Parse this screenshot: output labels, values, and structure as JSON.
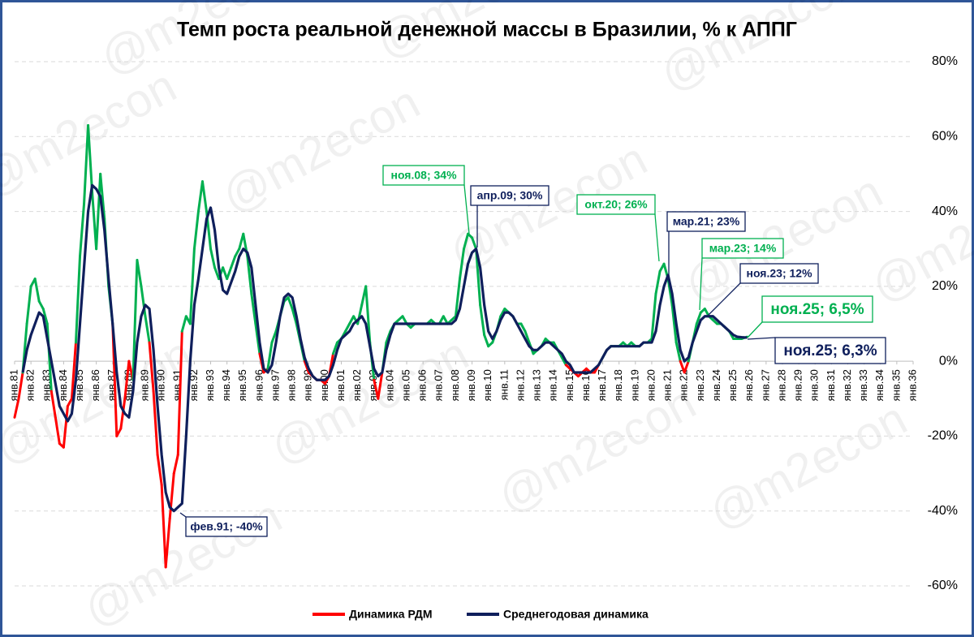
{
  "chart_data": {
    "type": "line",
    "title": "Темп роста реальной денежной массы в Бразилии, % к АППГ",
    "watermark": "@m2econ",
    "x": [
      1981,
      1981.25,
      1981.5,
      1981.75,
      1982,
      1982.25,
      1982.5,
      1982.75,
      1983,
      1983.25,
      1983.5,
      1983.75,
      1984,
      1984.25,
      1984.5,
      1984.75,
      1985,
      1985.25,
      1985.5,
      1985.75,
      1986,
      1986.25,
      1986.5,
      1986.75,
      1987,
      1987.25,
      1987.5,
      1987.75,
      1988,
      1988.25,
      1988.5,
      1988.75,
      1989,
      1989.25,
      1989.5,
      1989.75,
      1990,
      1990.25,
      1990.5,
      1990.75,
      1991,
      1991.25,
      1991.5,
      1991.75,
      1992,
      1992.25,
      1992.5,
      1992.75,
      1993,
      1993.25,
      1993.5,
      1993.75,
      1994,
      1994.25,
      1994.5,
      1994.75,
      1995,
      1995.25,
      1995.5,
      1995.75,
      1996,
      1996.25,
      1996.5,
      1996.75,
      1997,
      1997.25,
      1997.5,
      1997.75,
      1998,
      1998.25,
      1998.5,
      1998.75,
      1999,
      1999.25,
      1999.5,
      1999.75,
      2000,
      2000.25,
      2000.5,
      2000.75,
      2001,
      2001.25,
      2001.5,
      2001.75,
      2002,
      2002.25,
      2002.5,
      2002.75,
      2003,
      2003.25,
      2003.5,
      2003.75,
      2004,
      2004.25,
      2004.5,
      2004.75,
      2005,
      2005.25,
      2005.5,
      2005.75,
      2006,
      2006.25,
      2006.5,
      2006.75,
      2007,
      2007.25,
      2007.5,
      2007.75,
      2008,
      2008.25,
      2008.5,
      2008.75,
      2009,
      2009.25,
      2009.5,
      2009.75,
      2010,
      2010.25,
      2010.5,
      2010.75,
      2011,
      2011.25,
      2011.5,
      2011.75,
      2012,
      2012.25,
      2012.5,
      2012.75,
      2013,
      2013.25,
      2013.5,
      2013.75,
      2014,
      2014.25,
      2014.5,
      2014.75,
      2015,
      2015.25,
      2015.5,
      2015.75,
      2016,
      2016.25,
      2016.5,
      2016.75,
      2017,
      2017.25,
      2017.5,
      2017.75,
      2018,
      2018.25,
      2018.5,
      2018.75,
      2019,
      2019.25,
      2019.5,
      2019.75,
      2020,
      2020.25,
      2020.5,
      2020.75,
      2021,
      2021.25,
      2021.5,
      2021.75,
      2022,
      2022.25,
      2022.5,
      2022.75,
      2023,
      2023.25,
      2023.5,
      2023.75,
      2024,
      2024.25,
      2024.5,
      2024.75,
      2025,
      2025.25,
      2025.5,
      2025.833
    ],
    "series": [
      {
        "name": "Динамика РДМ",
        "color": "#ff0000",
        "positive_color": "#00b050",
        "values": [
          -15,
          -10,
          -3,
          10,
          20,
          22,
          16,
          14,
          10,
          -8,
          -15,
          -22,
          -23,
          -12,
          -10,
          5,
          28,
          42,
          63,
          45,
          30,
          50,
          38,
          20,
          10,
          -20,
          -18,
          -10,
          0,
          -5,
          27,
          20,
          12,
          5,
          -8,
          -25,
          -33,
          -55,
          -42,
          -30,
          -25,
          8,
          12,
          10,
          30,
          40,
          48,
          40,
          30,
          25,
          22,
          25,
          22,
          25,
          28,
          30,
          34,
          28,
          18,
          10,
          2,
          -3,
          -2,
          5,
          8,
          12,
          16,
          17,
          14,
          10,
          5,
          0,
          -3,
          -4,
          -5,
          -5,
          -6,
          -4,
          2,
          5,
          6,
          8,
          10,
          12,
          10,
          15,
          20,
          5,
          -5,
          -10,
          -3,
          5,
          8,
          10,
          11,
          12,
          10,
          9,
          10,
          10,
          10,
          10,
          11,
          10,
          10,
          12,
          10,
          11,
          12,
          22,
          30,
          34,
          33,
          30,
          15,
          7,
          4,
          5,
          8,
          12,
          14,
          13,
          12,
          10,
          10,
          8,
          5,
          2,
          3,
          4,
          6,
          5,
          5,
          3,
          1,
          -1,
          -2,
          -3,
          -4,
          -3,
          -2,
          -3,
          -3,
          -1,
          1,
          3,
          4,
          4,
          4,
          5,
          4,
          5,
          4,
          4,
          5,
          5,
          6,
          18,
          24,
          26,
          22,
          15,
          5,
          0,
          -3,
          0,
          5,
          10,
          13,
          14,
          12,
          11,
          10,
          10,
          9,
          8,
          6,
          6,
          6,
          6.5
        ]
      },
      {
        "name": "Среднегодовая динамика",
        "color": "#0f1f5c",
        "values": [
          null,
          null,
          -3,
          3,
          7,
          10,
          13,
          12,
          6,
          0,
          -6,
          -12,
          -14,
          -16,
          -14,
          -5,
          10,
          25,
          40,
          47,
          46,
          44,
          35,
          22,
          10,
          -3,
          -12,
          -14,
          -15,
          -8,
          5,
          12,
          15,
          14,
          3,
          -12,
          -25,
          -35,
          -39,
          -40,
          -39,
          -38,
          -20,
          0,
          15,
          22,
          30,
          38,
          41,
          35,
          25,
          19,
          18,
          21,
          24,
          28,
          30,
          29,
          25,
          15,
          5,
          -2,
          -3,
          -1,
          5,
          12,
          17,
          18,
          17,
          12,
          6,
          1,
          -2,
          -4,
          -5,
          -5,
          -5,
          -4,
          -1,
          3,
          6,
          7,
          8,
          10,
          11,
          12,
          10,
          4,
          -2,
          -4,
          -3,
          3,
          7,
          10,
          10,
          10,
          10,
          10,
          10,
          10,
          10,
          10,
          10,
          10,
          10,
          10,
          10,
          10,
          11,
          14,
          20,
          26,
          29,
          30,
          25,
          15,
          8,
          6,
          8,
          11,
          13,
          13,
          12,
          10,
          8,
          6,
          4,
          3,
          3,
          4,
          5,
          5,
          4,
          3,
          2,
          0,
          -1,
          -3,
          -3,
          -3,
          -3,
          -3,
          -2,
          -1,
          1,
          3,
          4,
          4,
          4,
          4,
          4,
          4,
          4,
          4,
          5,
          5,
          5,
          8,
          15,
          20,
          23,
          18,
          10,
          3,
          0,
          1,
          5,
          8,
          11,
          12,
          12,
          12,
          11,
          10,
          9,
          8,
          7,
          6.5,
          6.4,
          6.3
        ]
      }
    ],
    "xlim": [
      1981,
      2036
    ],
    "xticks": [
      {
        "value": 1981,
        "label": "янв.81"
      },
      {
        "value": 1982,
        "label": "янв.82"
      },
      {
        "value": 1983,
        "label": "янв.83"
      },
      {
        "value": 1984,
        "label": "янв.84"
      },
      {
        "value": 1985,
        "label": "янв.85"
      },
      {
        "value": 1986,
        "label": "янв.86"
      },
      {
        "value": 1987,
        "label": "янв.87"
      },
      {
        "value": 1988,
        "label": "янв.88"
      },
      {
        "value": 1989,
        "label": "янв.89"
      },
      {
        "value": 1990,
        "label": "янв.90"
      },
      {
        "value": 1991,
        "label": "янв.91"
      },
      {
        "value": 1992,
        "label": "янв.92"
      },
      {
        "value": 1993,
        "label": "янв.93"
      },
      {
        "value": 1994,
        "label": "янв.94"
      },
      {
        "value": 1995,
        "label": "янв.95"
      },
      {
        "value": 1996,
        "label": "янв.96"
      },
      {
        "value": 1997,
        "label": "янв.97"
      },
      {
        "value": 1998,
        "label": "янв.98"
      },
      {
        "value": 1999,
        "label": "янв.99"
      },
      {
        "value": 2000,
        "label": "янв.00"
      },
      {
        "value": 2001,
        "label": "янв.01"
      },
      {
        "value": 2002,
        "label": "янв.02"
      },
      {
        "value": 2003,
        "label": "янв.03"
      },
      {
        "value": 2004,
        "label": "янв.04"
      },
      {
        "value": 2005,
        "label": "янв.05"
      },
      {
        "value": 2006,
        "label": "янв.06"
      },
      {
        "value": 2007,
        "label": "янв.07"
      },
      {
        "value": 2008,
        "label": "янв.08"
      },
      {
        "value": 2009,
        "label": "янв.09"
      },
      {
        "value": 2010,
        "label": "янв.10"
      },
      {
        "value": 2011,
        "label": "янв.11"
      },
      {
        "value": 2012,
        "label": "янв.12"
      },
      {
        "value": 2013,
        "label": "янв.13"
      },
      {
        "value": 2014,
        "label": "янв.14"
      },
      {
        "value": 2015,
        "label": "янв.15"
      },
      {
        "value": 2016,
        "label": "янв.16"
      },
      {
        "value": 2017,
        "label": "янв.17"
      },
      {
        "value": 2018,
        "label": "янв.18"
      },
      {
        "value": 2019,
        "label": "янв.19"
      },
      {
        "value": 2020,
        "label": "янв.20"
      },
      {
        "value": 2021,
        "label": "янв.21"
      },
      {
        "value": 2022,
        "label": "янв.22"
      },
      {
        "value": 2023,
        "label": "янв.23"
      },
      {
        "value": 2024,
        "label": "янв.24"
      },
      {
        "value": 2025,
        "label": "янв.25"
      },
      {
        "value": 2026,
        "label": "янв.26"
      },
      {
        "value": 2027,
        "label": "янв.27"
      },
      {
        "value": 2028,
        "label": "янв.28"
      },
      {
        "value": 2029,
        "label": "янв.29"
      },
      {
        "value": 2030,
        "label": "янв.30"
      },
      {
        "value": 2031,
        "label": "янв.31"
      },
      {
        "value": 2032,
        "label": "янв.32"
      },
      {
        "value": 2033,
        "label": "янв.33"
      },
      {
        "value": 2034,
        "label": "янв.34"
      },
      {
        "value": 2035,
        "label": "янв.35"
      },
      {
        "value": 2036,
        "label": "янв.36"
      }
    ],
    "ylim": [
      -60,
      80
    ],
    "yticks": [
      {
        "value": -60,
        "label": "-60%"
      },
      {
        "value": -40,
        "label": "-40%"
      },
      {
        "value": -20,
        "label": "-20%"
      },
      {
        "value": 0,
        "label": "0%"
      },
      {
        "value": 20,
        "label": "20%"
      },
      {
        "value": 40,
        "label": "40%"
      },
      {
        "value": 60,
        "label": "60%"
      },
      {
        "value": 80,
        "label": "80%"
      }
    ],
    "grid": true,
    "legend": "bottom",
    "annotations": [
      {
        "text": "ноя.08; 34%",
        "color": "#00b050"
      },
      {
        "text": "апр.09; 30%",
        "color": "#0f1f5c"
      },
      {
        "text": "окт.20; 26%",
        "color": "#00b050"
      },
      {
        "text": "мар.21; 23%",
        "color": "#0f1f5c"
      },
      {
        "text": "мар.23; 14%",
        "color": "#00b050"
      },
      {
        "text": "ноя.23; 12%",
        "color": "#0f1f5c"
      },
      {
        "text": "ноя.25; 6,5%",
        "color": "#00b050"
      },
      {
        "text": "ноя.25; 6,3%",
        "color": "#0f1f5c"
      },
      {
        "text": "фев.91; -40%",
        "color": "#0f1f5c"
      }
    ]
  }
}
